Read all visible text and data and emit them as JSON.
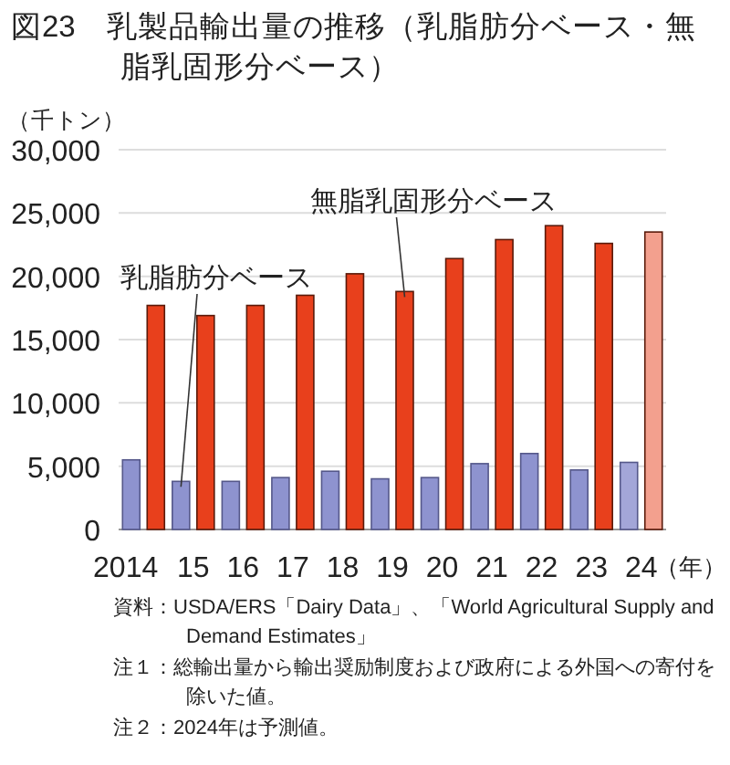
{
  "chart_data": {
    "type": "bar",
    "title": "図23　乳製品輸出量の推移（乳脂肪分ベース・無脂乳固形分ベース）",
    "ylabel": "（千トン）",
    "xlabel": "（年）",
    "categories": [
      "2014",
      "15",
      "16",
      "17",
      "18",
      "19",
      "20",
      "21",
      "22",
      "23",
      "24"
    ],
    "series": [
      {
        "name": "乳脂肪分ベース",
        "colors": [
          "#8e93cf",
          "#8e93cf",
          "#8e93cf",
          "#8e93cf",
          "#8e93cf",
          "#8e93cf",
          "#8e93cf",
          "#8e93cf",
          "#8e93cf",
          "#8e93cf",
          "#a3a6d8"
        ],
        "values": [
          5500,
          3800,
          3800,
          4100,
          4600,
          4000,
          4100,
          5200,
          6000,
          4700,
          5300
        ]
      },
      {
        "name": "無脂乳固形分ベース",
        "colors": [
          "#e8401c",
          "#e8401c",
          "#e8401c",
          "#e8401c",
          "#e8401c",
          "#e8401c",
          "#e8401c",
          "#e8401c",
          "#e8401c",
          "#e8401c",
          "#f3a08e"
        ],
        "values": [
          17700,
          16900,
          17700,
          18500,
          20200,
          18800,
          21400,
          22900,
          24000,
          22600,
          23500
        ]
      }
    ],
    "ylim": [
      0,
      30000
    ],
    "yticks": [
      {
        "value": 0,
        "label": "0"
      },
      {
        "value": 5000,
        "label": "5,000"
      },
      {
        "value": 10000,
        "label": "10,000"
      },
      {
        "value": 15000,
        "label": "15,000"
      },
      {
        "value": 20000,
        "label": "20,000"
      },
      {
        "value": 25000,
        "label": "25,000"
      },
      {
        "value": 30000,
        "label": "30,000"
      }
    ],
    "grid": "y",
    "legend": false,
    "annotations": [
      "資料：USDA/ERS「Dairy Data」、「World Agricultural Supply and Demand Estimates」",
      "注１：総輸出量から輸出奨励制度および政府による外国への寄付を除いた値。",
      "注２：2024年は予測値。"
    ]
  }
}
